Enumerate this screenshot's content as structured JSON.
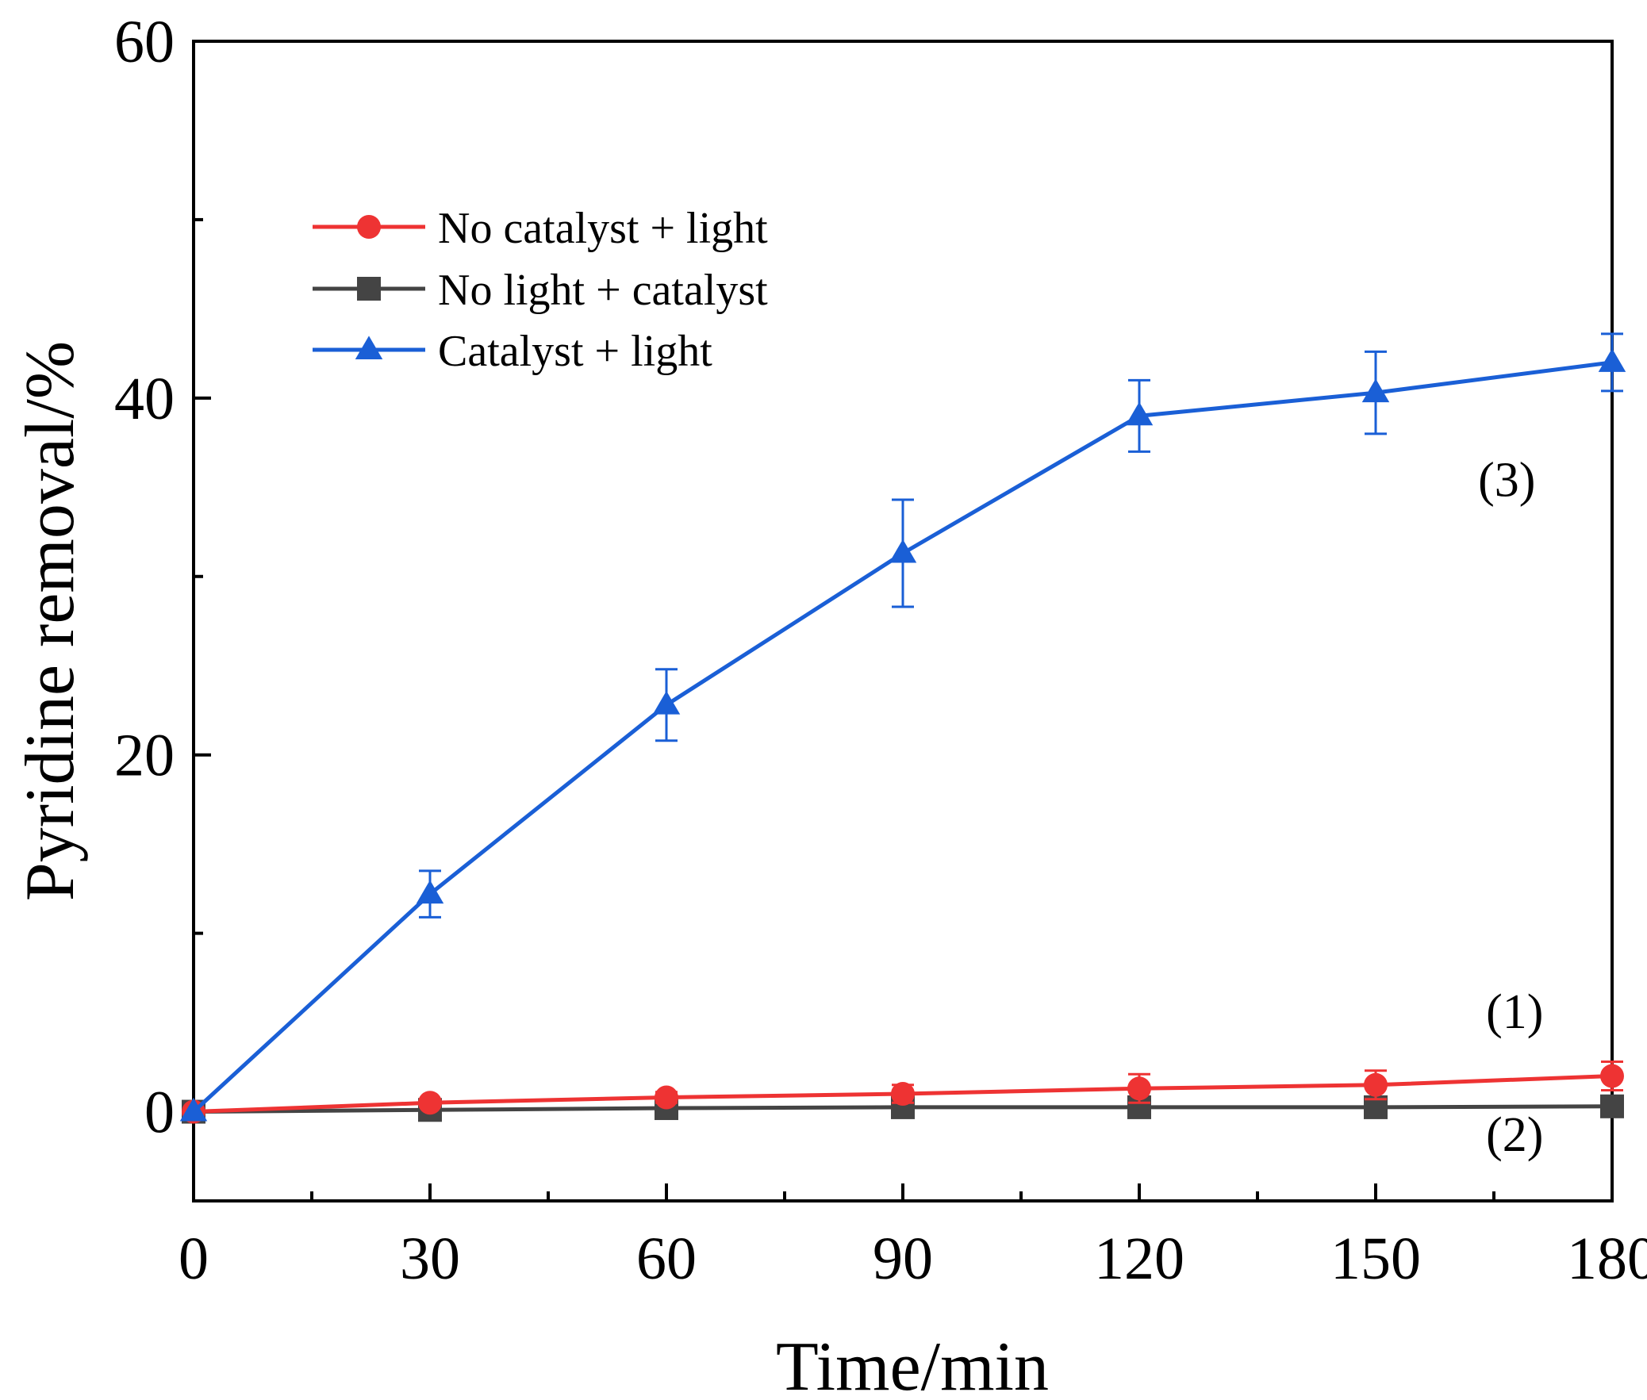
{
  "chart_data": {
    "type": "line",
    "title": "",
    "xlabel": "Time/min",
    "ylabel": "Pyridine removal/%",
    "xlim": [
      0,
      180
    ],
    "ylim": [
      -5,
      60
    ],
    "xticks": [
      0,
      30,
      60,
      90,
      120,
      150,
      180
    ],
    "xtick_labels": [
      "0",
      "30",
      "60",
      "90",
      "120",
      "150",
      "180"
    ],
    "yticks": [
      0,
      20,
      40,
      60
    ],
    "ytick_labels": [
      "0",
      "20",
      "40",
      "60"
    ],
    "minor_xticks": [
      15,
      45,
      75,
      105,
      135,
      165
    ],
    "minor_yticks": [
      10,
      30,
      50
    ],
    "legend_position": "top-left",
    "series": [
      {
        "name": "No catalyst + light",
        "color": "#ee3333",
        "marker": "circle",
        "x": [
          0,
          30,
          60,
          90,
          120,
          150,
          180
        ],
        "y": [
          0,
          0.5,
          0.8,
          1.0,
          1.3,
          1.5,
          2.0
        ],
        "err": [
          0,
          0.2,
          0.3,
          0.5,
          0.8,
          0.8,
          0.8
        ]
      },
      {
        "name": "No light + catalyst",
        "color": "#444444",
        "marker": "square",
        "x": [
          0,
          30,
          60,
          90,
          120,
          150,
          180
        ],
        "y": [
          0,
          0.1,
          0.2,
          0.25,
          0.25,
          0.25,
          0.3
        ],
        "err": [
          0,
          0,
          0,
          0,
          0,
          0,
          0
        ]
      },
      {
        "name": "Catalyst + light",
        "color": "#1a5fd6",
        "marker": "triangle",
        "x": [
          0,
          30,
          60,
          90,
          120,
          150,
          180
        ],
        "y": [
          0,
          12.2,
          22.8,
          31.3,
          39.0,
          40.3,
          42.0
        ],
        "err": [
          0,
          1.3,
          2.0,
          3.0,
          2.0,
          2.3,
          1.6
        ]
      }
    ],
    "annotations": [
      {
        "text": "(3)",
        "x": 163,
        "y": 34.5
      },
      {
        "text": "(1)",
        "x": 164,
        "y": 4.7
      },
      {
        "text": "(2)",
        "x": 164,
        "y": -2.2
      }
    ]
  }
}
